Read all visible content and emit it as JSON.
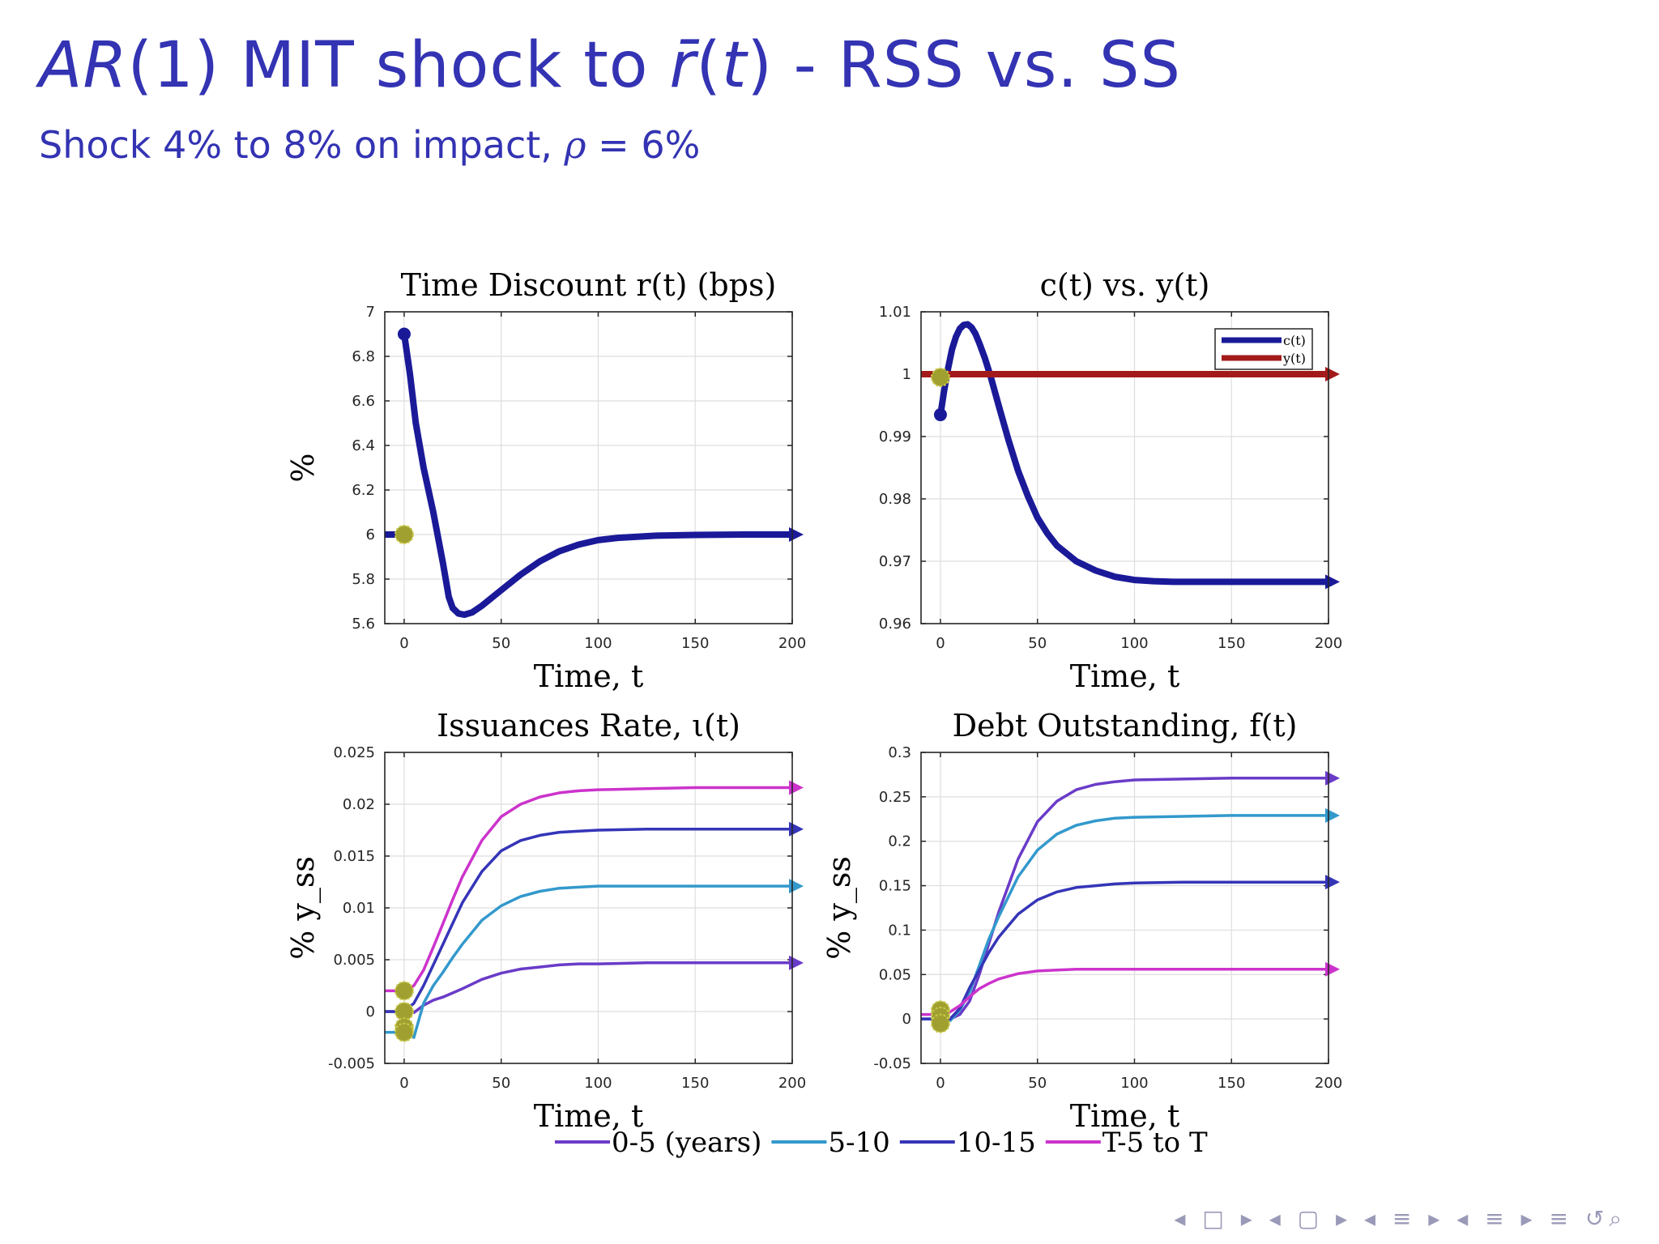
{
  "slide": {
    "title_pre_italic": "AR",
    "title_mid": "(1) MIT shock to ",
    "title_rbar": "r̄",
    "title_paren_open": "(",
    "title_t": "t",
    "title_post": ") - RSS vs. SS",
    "subtitle_pre": "Shock 4% to 8% on impact, ",
    "subtitle_rho": "ρ",
    "subtitle_post": " = 6%"
  },
  "navigation": {
    "symbols": "◂ □ ▸ ◂ ▢ ▸ ◂ ≡ ▸ ◂ ≡ ▸  ≡  ↺⌕"
  },
  "colors": {
    "accent": "#3333b3",
    "series_0_5": "#6a3bc8",
    "series_5_10": "#3399cc",
    "series_10_15": "#3535b8",
    "series_T": "#cc33cc",
    "c": "#1a1a99",
    "y": "#a31a1a",
    "marker_ss": "#a0a030"
  },
  "chart_data": [
    {
      "id": "r",
      "type": "line",
      "title": "Time Discount r(t) (bps)",
      "xlabel": "Time, t",
      "ylabel": "%",
      "xlim": [
        -10,
        200
      ],
      "ylim": [
        5.6,
        7.0
      ],
      "xticks": [
        0,
        50,
        100,
        150,
        200
      ],
      "yticks": [
        5.6,
        5.8,
        6.0,
        6.2,
        6.4,
        6.6,
        6.8,
        7.0
      ],
      "ytick_labels": [
        "5.6",
        "5.8",
        "6",
        "6.2",
        "6.4",
        "6.6",
        "6.8",
        "7"
      ],
      "grid": true,
      "series": [
        {
          "color": "#1a1a99",
          "x": [
            0,
            3,
            6,
            10,
            15,
            20,
            23,
            25,
            28,
            31,
            35,
            40,
            50,
            60,
            70,
            80,
            90,
            100,
            110,
            120,
            130,
            150,
            175,
            200
          ],
          "y": [
            6.9,
            6.72,
            6.5,
            6.3,
            6.1,
            5.87,
            5.72,
            5.67,
            5.645,
            5.64,
            5.65,
            5.68,
            5.75,
            5.82,
            5.88,
            5.925,
            5.955,
            5.975,
            5.985,
            5.99,
            5.995,
            5.998,
            6.0,
            6.0
          ]
        }
      ],
      "ss_markers": [
        [
          0,
          6.0
        ]
      ]
    },
    {
      "id": "cy",
      "type": "line",
      "title": "c(t) vs. y(t)",
      "xlabel": "Time, t",
      "xlim": [
        -10,
        200
      ],
      "ylim": [
        0.96,
        1.01
      ],
      "xticks": [
        0,
        50,
        100,
        150,
        200
      ],
      "yticks": [
        0.96,
        0.97,
        0.98,
        0.99,
        1.0,
        1.01
      ],
      "ytick_labels": [
        "0.96",
        "0.97",
        "0.98",
        "0.99",
        "1",
        "1.01"
      ],
      "grid": true,
      "legend": "top-right",
      "series": [
        {
          "name": "c(t)",
          "color": "#1a1a99",
          "x": [
            0,
            2,
            4,
            6,
            8,
            10,
            12,
            14,
            16,
            18,
            20,
            23,
            26,
            30,
            35,
            40,
            45,
            50,
            55,
            60,
            70,
            80,
            90,
            100,
            110,
            120,
            130,
            150,
            175,
            200
          ],
          "y": [
            0.9935,
            0.9975,
            1.001,
            1.004,
            1.006,
            1.0073,
            1.0079,
            1.008,
            1.0075,
            1.0065,
            1.005,
            1.0025,
            0.9995,
            0.995,
            0.9895,
            0.9845,
            0.9805,
            0.977,
            0.9745,
            0.9725,
            0.97,
            0.9685,
            0.9675,
            0.967,
            0.9668,
            0.9667,
            0.9667,
            0.9667,
            0.9667,
            0.9667
          ]
        },
        {
          "name": "y(t)",
          "color": "#a31a1a",
          "x": [
            -10,
            0,
            50,
            100,
            150,
            200
          ],
          "y": [
            1.0,
            1.0,
            1.0,
            1.0,
            1.0,
            1.0
          ]
        }
      ],
      "ss_markers": [
        [
          0,
          0.9995
        ]
      ]
    },
    {
      "id": "iota",
      "type": "line",
      "title": "Issuances Rate, ι(t)",
      "xlabel": "Time, t",
      "ylabel": "% y_ss",
      "xlim": [
        -10,
        200
      ],
      "ylim": [
        -0.005,
        0.025
      ],
      "xticks": [
        0,
        50,
        100,
        150,
        200
      ],
      "yticks": [
        -0.005,
        0,
        0.005,
        0.01,
        0.015,
        0.02,
        0.025
      ],
      "ytick_labels": [
        "-0.005",
        "0",
        "0.005",
        "0.01",
        "0.015",
        "0.02",
        "0.025"
      ],
      "grid": true,
      "series": [
        {
          "color": "#6a3bc8",
          "x": [
            0,
            5,
            10,
            15,
            20,
            25,
            30,
            40,
            50,
            60,
            70,
            80,
            90,
            100,
            125,
            150,
            175,
            200
          ],
          "y": [
            0.0,
            -0.0001,
            0.0006,
            0.0011,
            0.0014,
            0.0018,
            0.0022,
            0.0031,
            0.0037,
            0.0041,
            0.0043,
            0.0045,
            0.0046,
            0.0046,
            0.0047,
            0.0047,
            0.0047,
            0.0047
          ]
        },
        {
          "color": "#3399cc",
          "x": [
            0,
            5,
            10,
            15,
            20,
            25,
            30,
            40,
            50,
            60,
            70,
            80,
            90,
            100,
            125,
            150,
            175,
            200
          ],
          "y": [
            -0.002,
            -0.0025,
            0.0008,
            0.0025,
            0.0038,
            0.0052,
            0.0065,
            0.0088,
            0.0102,
            0.0111,
            0.0116,
            0.0119,
            0.012,
            0.0121,
            0.0121,
            0.0121,
            0.0121,
            0.0121
          ]
        },
        {
          "color": "#3535b8",
          "x": [
            0,
            5,
            10,
            15,
            20,
            25,
            30,
            40,
            50,
            60,
            70,
            80,
            90,
            100,
            125,
            150,
            175,
            200
          ],
          "y": [
            0.0,
            0.0008,
            0.0025,
            0.0045,
            0.0065,
            0.0085,
            0.0105,
            0.0135,
            0.0155,
            0.0165,
            0.017,
            0.0173,
            0.0174,
            0.0175,
            0.0176,
            0.0176,
            0.0176,
            0.0176
          ]
        },
        {
          "color": "#cc33cc",
          "x": [
            0,
            5,
            10,
            15,
            20,
            25,
            30,
            40,
            50,
            60,
            70,
            80,
            90,
            100,
            125,
            150,
            175,
            200
          ],
          "y": [
            0.002,
            0.0025,
            0.004,
            0.0062,
            0.0085,
            0.0108,
            0.013,
            0.0165,
            0.0188,
            0.02,
            0.0207,
            0.0211,
            0.0213,
            0.0214,
            0.0215,
            0.0216,
            0.0216,
            0.0216
          ]
        }
      ],
      "ss_markers": [
        [
          0,
          0.002
        ],
        [
          0,
          0.0
        ],
        [
          0,
          -0.0015
        ],
        [
          0,
          -0.002
        ]
      ]
    },
    {
      "id": "f",
      "type": "line",
      "title": "Debt Outstanding, f(t)",
      "xlabel": "Time, t",
      "ylabel": "% y_ss",
      "xlim": [
        -10,
        200
      ],
      "ylim": [
        -0.05,
        0.3
      ],
      "xticks": [
        0,
        50,
        100,
        150,
        200
      ],
      "yticks": [
        -0.05,
        0,
        0.05,
        0.1,
        0.15,
        0.2,
        0.25,
        0.3
      ],
      "ytick_labels": [
        "-0.05",
        "0",
        "0.05",
        "0.1",
        "0.15",
        "0.2",
        "0.25",
        "0.3"
      ],
      "grid": true,
      "series": [
        {
          "color": "#6a3bc8",
          "x": [
            0,
            5,
            10,
            15,
            20,
            25,
            30,
            40,
            50,
            60,
            70,
            80,
            90,
            100,
            125,
            150,
            175,
            200
          ],
          "y": [
            0.0,
            0.0,
            0.005,
            0.02,
            0.05,
            0.085,
            0.12,
            0.18,
            0.222,
            0.245,
            0.258,
            0.264,
            0.267,
            0.269,
            0.27,
            0.271,
            0.271,
            0.271
          ]
        },
        {
          "color": "#3399cc",
          "x": [
            0,
            5,
            10,
            15,
            20,
            25,
            30,
            40,
            50,
            60,
            70,
            80,
            90,
            100,
            125,
            150,
            175,
            200
          ],
          "y": [
            0.0,
            -0.002,
            0.01,
            0.03,
            0.06,
            0.09,
            0.115,
            0.16,
            0.19,
            0.208,
            0.218,
            0.223,
            0.226,
            0.227,
            0.228,
            0.229,
            0.229,
            0.229
          ]
        },
        {
          "color": "#3535b8",
          "x": [
            0,
            5,
            10,
            15,
            20,
            25,
            30,
            40,
            50,
            60,
            70,
            80,
            90,
            100,
            125,
            150,
            175,
            200
          ],
          "y": [
            0.0,
            0.0,
            0.012,
            0.035,
            0.055,
            0.075,
            0.092,
            0.118,
            0.134,
            0.143,
            0.148,
            0.15,
            0.152,
            0.153,
            0.154,
            0.154,
            0.154,
            0.154
          ]
        },
        {
          "color": "#cc33cc",
          "x": [
            0,
            5,
            10,
            15,
            20,
            25,
            30,
            40,
            50,
            60,
            70,
            80,
            90,
            100,
            125,
            150,
            175,
            200
          ],
          "y": [
            0.005,
            0.008,
            0.015,
            0.025,
            0.034,
            0.04,
            0.045,
            0.051,
            0.054,
            0.055,
            0.056,
            0.056,
            0.056,
            0.056,
            0.056,
            0.056,
            0.056,
            0.056
          ]
        }
      ],
      "ss_markers": [
        [
          0,
          0.01
        ],
        [
          0,
          0.003
        ],
        [
          0,
          -0.005
        ]
      ]
    }
  ],
  "shared_legend": [
    {
      "label": "0-5 (years)",
      "color": "#6a3bc8"
    },
    {
      "label": "5-10",
      "color": "#3399cc"
    },
    {
      "label": "10-15",
      "color": "#3535b8"
    },
    {
      "label": "T-5 to T",
      "color": "#cc33cc"
    }
  ]
}
